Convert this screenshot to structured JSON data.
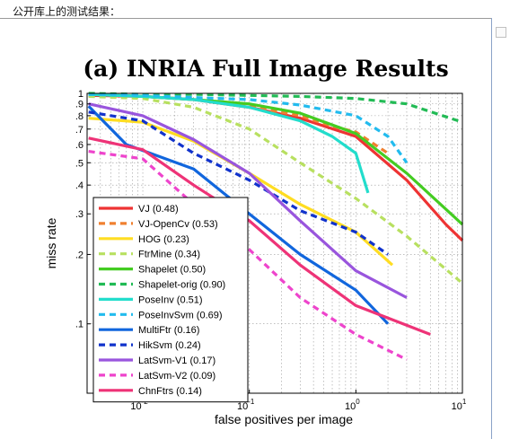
{
  "caption": "公开库上的测试结果：",
  "chart_data": {
    "type": "line",
    "title": "(a)  INRIA Full Image Results",
    "xlabel": "false positives per image",
    "ylabel": "miss rate",
    "x_scale": "log",
    "y_scale": "log",
    "xlim": [
      0.003,
      10
    ],
    "ylim": [
      0.05,
      1
    ],
    "x_ticks": [
      {
        "value": 0.01,
        "base": "10",
        "exp": "-2"
      },
      {
        "value": 0.1,
        "base": "10",
        "exp": "-1"
      },
      {
        "value": 1,
        "base": "10",
        "exp": "0"
      },
      {
        "value": 10,
        "base": "10",
        "exp": "1"
      }
    ],
    "y_ticks": [
      {
        "value": 0.1,
        "label": ".1"
      },
      {
        "value": 0.2,
        "label": ".2"
      },
      {
        "value": 0.3,
        "label": ".3"
      },
      {
        "value": 0.4,
        "label": ".4"
      },
      {
        "value": 0.5,
        "label": ".5"
      },
      {
        "value": 0.6,
        "label": ".6"
      },
      {
        "value": 0.7,
        "label": ".7"
      },
      {
        "value": 0.8,
        "label": ".8"
      },
      {
        "value": 0.9,
        "label": ".9"
      },
      {
        "value": 1,
        "label": "1"
      }
    ],
    "grid": true,
    "legend_position": "bottom-left",
    "series": [
      {
        "name": "VJ (0.48)",
        "color": "#ee3333",
        "dashed": false,
        "points": [
          [
            0.0031,
            0.98
          ],
          [
            0.01,
            0.97
          ],
          [
            0.03,
            0.94
          ],
          [
            0.1,
            0.87
          ],
          [
            0.3,
            0.78
          ],
          [
            1,
            0.65
          ],
          [
            3,
            0.42
          ],
          [
            7,
            0.27
          ],
          [
            10,
            0.23
          ]
        ]
      },
      {
        "name": "VJ-OpenCv (0.53)",
        "color": "#f08030",
        "dashed": true,
        "points": [
          [
            0.0031,
            0.99
          ],
          [
            0.01,
            0.97
          ],
          [
            0.03,
            0.95
          ],
          [
            0.1,
            0.88
          ],
          [
            0.3,
            0.8
          ],
          [
            0.6,
            0.72
          ],
          [
            1,
            0.68
          ],
          [
            2,
            0.55
          ]
        ]
      },
      {
        "name": "HOG (0.23)",
        "color": "#ffdd22",
        "dashed": false,
        "points": [
          [
            0.0031,
            0.78
          ],
          [
            0.01,
            0.75
          ],
          [
            0.03,
            0.62
          ],
          [
            0.1,
            0.45
          ],
          [
            0.3,
            0.33
          ],
          [
            1,
            0.25
          ],
          [
            2.2,
            0.18
          ]
        ]
      },
      {
        "name": "FtrMine (0.34)",
        "color": "#b8e060",
        "dashed": true,
        "points": [
          [
            0.0031,
            0.97
          ],
          [
            0.01,
            0.95
          ],
          [
            0.03,
            0.87
          ],
          [
            0.1,
            0.7
          ],
          [
            0.3,
            0.5
          ],
          [
            1,
            0.35
          ],
          [
            3,
            0.24
          ],
          [
            10,
            0.15
          ]
        ]
      },
      {
        "name": "Shapelet (0.50)",
        "color": "#44cc22",
        "dashed": false,
        "points": [
          [
            0.0031,
            0.99
          ],
          [
            0.01,
            0.97
          ],
          [
            0.03,
            0.94
          ],
          [
            0.1,
            0.9
          ],
          [
            0.3,
            0.82
          ],
          [
            1,
            0.67
          ],
          [
            3,
            0.45
          ],
          [
            10,
            0.27
          ]
        ]
      },
      {
        "name": "Shapelet-orig (0.90)",
        "color": "#22bb55",
        "dashed": true,
        "points": [
          [
            0.0031,
            1
          ],
          [
            0.01,
            0.99
          ],
          [
            0.03,
            0.99
          ],
          [
            0.1,
            0.98
          ],
          [
            0.3,
            0.97
          ],
          [
            1,
            0.95
          ],
          [
            3,
            0.9
          ],
          [
            10,
            0.75
          ]
        ]
      },
      {
        "name": "PoseInv (0.51)",
        "color": "#22ddcc",
        "dashed": false,
        "points": [
          [
            0.0031,
            0.99
          ],
          [
            0.01,
            0.97
          ],
          [
            0.03,
            0.94
          ],
          [
            0.1,
            0.87
          ],
          [
            0.3,
            0.76
          ],
          [
            0.6,
            0.65
          ],
          [
            1,
            0.55
          ],
          [
            1.3,
            0.37
          ]
        ]
      },
      {
        "name": "PoseInvSvm (0.69)",
        "color": "#22bbee",
        "dashed": true,
        "points": [
          [
            0.0031,
            0.99
          ],
          [
            0.01,
            0.98
          ],
          [
            0.03,
            0.96
          ],
          [
            0.1,
            0.94
          ],
          [
            0.3,
            0.89
          ],
          [
            1,
            0.8
          ],
          [
            2,
            0.65
          ],
          [
            3,
            0.5
          ]
        ]
      },
      {
        "name": "MultiFtr (0.16)",
        "color": "#1166dd",
        "dashed": false,
        "points": [
          [
            0.0031,
            0.88
          ],
          [
            0.007,
            0.6
          ],
          [
            0.03,
            0.47
          ],
          [
            0.1,
            0.3
          ],
          [
            0.3,
            0.2
          ],
          [
            1,
            0.14
          ],
          [
            2,
            0.1
          ]
        ]
      },
      {
        "name": "HikSvm (0.24)",
        "color": "#1133cc",
        "dashed": true,
        "points": [
          [
            0.0031,
            0.83
          ],
          [
            0.01,
            0.76
          ],
          [
            0.03,
            0.55
          ],
          [
            0.1,
            0.42
          ],
          [
            0.3,
            0.31
          ],
          [
            1,
            0.25
          ],
          [
            2,
            0.2
          ]
        ]
      },
      {
        "name": "LatSvm-V1 (0.17)",
        "color": "#9955dd",
        "dashed": false,
        "points": [
          [
            0.0031,
            0.9
          ],
          [
            0.01,
            0.8
          ],
          [
            0.03,
            0.63
          ],
          [
            0.1,
            0.45
          ],
          [
            0.3,
            0.28
          ],
          [
            1,
            0.17
          ],
          [
            3,
            0.13
          ]
        ]
      },
      {
        "name": "LatSvm-V2 (0.09)",
        "color": "#ee44cc",
        "dashed": true,
        "points": [
          [
            0.0031,
            0.56
          ],
          [
            0.01,
            0.52
          ],
          [
            0.03,
            0.33
          ],
          [
            0.1,
            0.21
          ],
          [
            0.3,
            0.13
          ],
          [
            1,
            0.09
          ],
          [
            3,
            0.07
          ]
        ]
      },
      {
        "name": "ChnFtrs (0.14)",
        "color": "#ee3377",
        "dashed": false,
        "points": [
          [
            0.0031,
            0.64
          ],
          [
            0.01,
            0.57
          ],
          [
            0.03,
            0.4
          ],
          [
            0.1,
            0.28
          ],
          [
            0.3,
            0.18
          ],
          [
            1,
            0.12
          ],
          [
            5,
            0.09
          ]
        ]
      }
    ]
  }
}
